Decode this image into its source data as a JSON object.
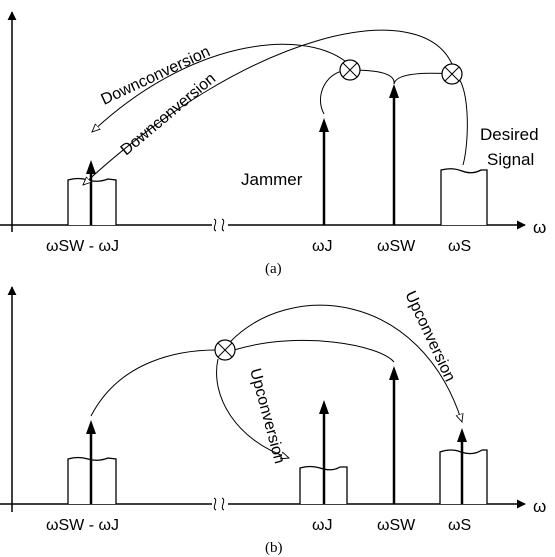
{
  "panel_a": {
    "x_axis_symbol": "ω",
    "tick_labels": {
      "image": "ωSW - ωJ",
      "jammer": "ωJ",
      "lo": "ωSW",
      "signal": "ωS"
    },
    "annotations": {
      "jammer": "Jammer",
      "desired_line1": "Desired",
      "desired_line2": "Signal",
      "downconv_1": "Downconversion",
      "downconv_2": "Downconversion"
    },
    "caption": "(a)"
  },
  "panel_b": {
    "x_axis_symbol": "ω",
    "tick_labels": {
      "image": "ωSW - ωJ",
      "jammer": "ωJ",
      "lo": "ωSW",
      "signal": "ωS"
    },
    "annotations": {
      "upconv_1": "Upconversion",
      "upconv_2": "Upconversion"
    },
    "caption": "(b)"
  }
}
